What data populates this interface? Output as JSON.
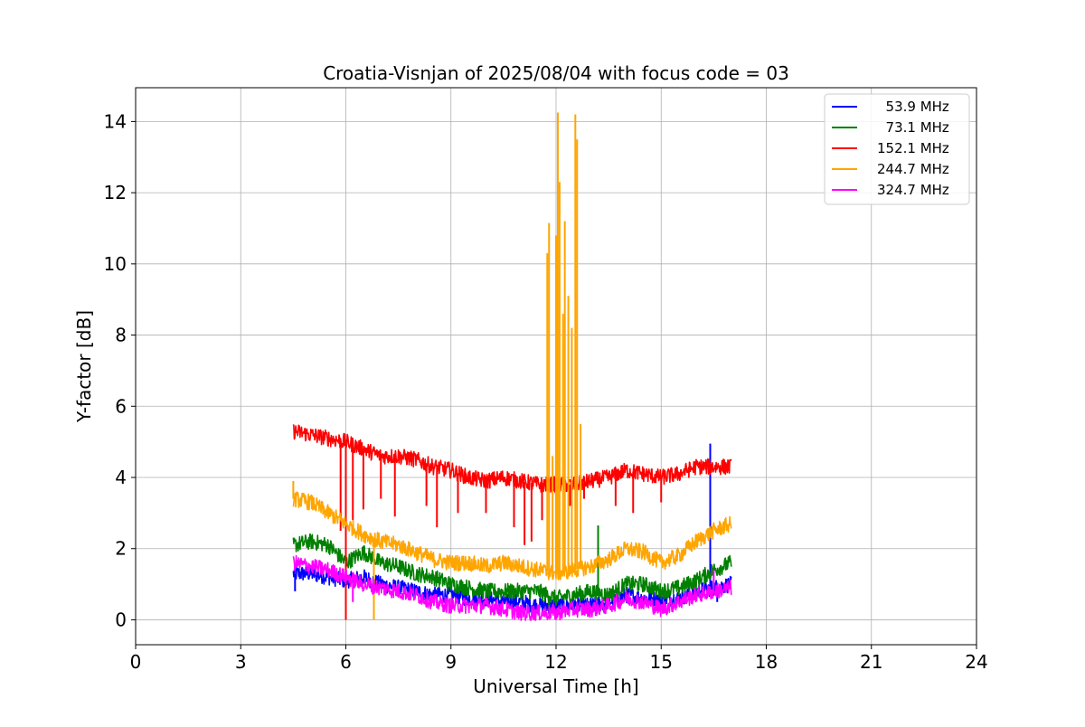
{
  "chart_data": {
    "type": "line",
    "title": "Croatia-Visnjan of 2025/08/04 with focus code = 03",
    "xlabel": "Universal Time [h]",
    "ylabel": "Y-factor [dB]",
    "xlim": [
      0,
      24
    ],
    "ylim": [
      -0.7,
      14.95
    ],
    "xticks": [
      0,
      3,
      6,
      9,
      12,
      15,
      18,
      21,
      24
    ],
    "yticks": [
      0,
      2,
      4,
      6,
      8,
      10,
      12,
      14
    ],
    "grid": true,
    "legend_position": "top-right",
    "series": [
      {
        "name": "  53.9 MHz",
        "color": "#0000ff",
        "x": [
          4.5,
          5,
          5.5,
          6,
          6.5,
          7,
          7.5,
          8,
          8.5,
          9,
          9.5,
          10,
          10.5,
          11,
          11.5,
          12,
          12.5,
          13,
          13.5,
          14,
          14.5,
          15,
          15.5,
          16,
          16.5,
          17
        ],
        "y": [
          1.3,
          1.3,
          1.2,
          1.1,
          1.2,
          1.0,
          0.9,
          0.8,
          0.7,
          0.7,
          0.6,
          0.6,
          0.5,
          0.5,
          0.4,
          0.4,
          0.4,
          0.4,
          0.5,
          0.7,
          0.6,
          0.6,
          0.6,
          0.8,
          0.9,
          1.0
        ],
        "spikes": [
          [
            4.55,
            0.8
          ],
          [
            16.4,
            4.95
          ],
          [
            16.6,
            0.5
          ]
        ]
      },
      {
        "name": "  73.1 MHz",
        "color": "#008000",
        "x": [
          4.5,
          5,
          5.5,
          6,
          6.5,
          7,
          7.5,
          8,
          8.5,
          9,
          9.5,
          10,
          10.5,
          11,
          11.5,
          12,
          12.5,
          13,
          13.5,
          14,
          14.5,
          15,
          15.5,
          16,
          16.5,
          17
        ],
        "y": [
          2.1,
          2.2,
          2.1,
          1.6,
          1.9,
          1.6,
          1.5,
          1.3,
          1.2,
          1.0,
          0.9,
          0.8,
          0.8,
          0.8,
          0.8,
          0.6,
          0.7,
          0.8,
          0.7,
          1.0,
          1.0,
          0.8,
          0.9,
          1.1,
          1.4,
          1.6
        ],
        "spikes": [
          [
            13.2,
            2.65
          ],
          [
            11.8,
            0.3
          ]
        ]
      },
      {
        "name": "152.1 MHz",
        "color": "#ff0000",
        "x": [
          4.5,
          5,
          5.5,
          6,
          6.5,
          7,
          7.5,
          8,
          8.5,
          9,
          9.5,
          10,
          10.5,
          11,
          11.5,
          12,
          12.5,
          13,
          13.5,
          14,
          14.5,
          15,
          15.5,
          16,
          16.5,
          17
        ],
        "y": [
          5.3,
          5.2,
          5.1,
          5.0,
          4.8,
          4.6,
          4.6,
          4.5,
          4.3,
          4.2,
          4.0,
          3.9,
          4.0,
          3.9,
          3.8,
          3.8,
          3.8,
          3.9,
          4.0,
          4.2,
          4.1,
          4.0,
          4.1,
          4.3,
          4.3,
          4.3
        ],
        "spikes": [
          [
            6.0,
            0.0
          ],
          [
            5.85,
            2.5
          ],
          [
            6.2,
            2.8
          ],
          [
            6.5,
            3.1
          ],
          [
            7.0,
            3.4
          ],
          [
            7.4,
            2.9
          ],
          [
            8.3,
            3.2
          ],
          [
            8.6,
            2.6
          ],
          [
            9.2,
            3.0
          ],
          [
            10.0,
            3.0
          ],
          [
            10.8,
            2.6
          ],
          [
            11.1,
            2.1
          ],
          [
            11.3,
            2.2
          ],
          [
            11.6,
            2.8
          ],
          [
            12.4,
            3.2
          ],
          [
            12.8,
            3.4
          ],
          [
            13.7,
            3.2
          ],
          [
            14.2,
            3.0
          ],
          [
            15.0,
            3.3
          ]
        ]
      },
      {
        "name": "244.7 MHz",
        "color": "#ffa500",
        "x": [
          4.5,
          5,
          5.5,
          6,
          6.5,
          7,
          7.5,
          8,
          8.5,
          9,
          9.5,
          10,
          10.5,
          11,
          11.5,
          12,
          12.5,
          13,
          13.5,
          14,
          14.5,
          15,
          15.5,
          16,
          16.5,
          17
        ],
        "y": [
          3.4,
          3.3,
          3.0,
          2.7,
          2.4,
          2.2,
          2.1,
          1.9,
          1.7,
          1.6,
          1.6,
          1.5,
          1.6,
          1.5,
          1.4,
          1.3,
          1.4,
          1.5,
          1.7,
          2.0,
          1.9,
          1.6,
          1.8,
          2.2,
          2.5,
          2.7
        ],
        "spikes": [
          [
            6.8,
            0.0
          ],
          [
            4.5,
            3.9
          ],
          [
            11.75,
            10.3
          ],
          [
            11.8,
            11.15
          ],
          [
            11.9,
            4.6
          ],
          [
            12.0,
            10.8
          ],
          [
            12.05,
            14.25
          ],
          [
            12.1,
            12.3
          ],
          [
            12.2,
            8.6
          ],
          [
            12.25,
            11.2
          ],
          [
            12.35,
            9.1
          ],
          [
            12.45,
            8.2
          ],
          [
            12.55,
            14.2
          ],
          [
            12.6,
            13.5
          ],
          [
            12.7,
            5.5
          ]
        ]
      },
      {
        "name": "324.7 MHz",
        "color": "#ff00ff",
        "x": [
          4.5,
          5,
          5.5,
          6,
          6.5,
          7,
          7.5,
          8,
          8.5,
          9,
          9.5,
          10,
          10.5,
          11,
          11.5,
          12,
          12.5,
          13,
          13.5,
          14,
          14.5,
          15,
          15.5,
          16,
          16.5,
          17
        ],
        "y": [
          1.6,
          1.5,
          1.4,
          1.2,
          1.0,
          0.9,
          0.8,
          0.7,
          0.5,
          0.4,
          0.4,
          0.4,
          0.3,
          0.2,
          0.2,
          0.2,
          0.3,
          0.3,
          0.4,
          0.6,
          0.5,
          0.3,
          0.5,
          0.7,
          0.8,
          0.9
        ],
        "spikes": [
          [
            6.2,
            0.5
          ],
          [
            12.0,
            0.0
          ],
          [
            16.5,
            1.4
          ]
        ]
      }
    ]
  }
}
